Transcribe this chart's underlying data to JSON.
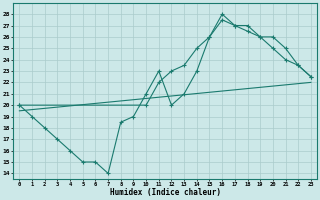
{
  "xlabel": "Humidex (Indice chaleur)",
  "bg_color": "#cce8e8",
  "grid_color": "#aacccc",
  "line_color": "#1a7a6e",
  "xlim": [
    -0.5,
    23.5
  ],
  "ylim": [
    13.5,
    29.0
  ],
  "xticks": [
    0,
    1,
    2,
    3,
    4,
    5,
    6,
    7,
    8,
    9,
    10,
    11,
    12,
    13,
    14,
    15,
    16,
    17,
    18,
    19,
    20,
    21,
    22,
    23
  ],
  "yticks": [
    14,
    15,
    16,
    17,
    18,
    19,
    20,
    21,
    22,
    23,
    24,
    25,
    26,
    27,
    28
  ],
  "line1_x": [
    0,
    1,
    2,
    3,
    4,
    5,
    6,
    7,
    8,
    9,
    10,
    11,
    12,
    13,
    14,
    15,
    16,
    17,
    18,
    19,
    20,
    21,
    22,
    23
  ],
  "line1_y": [
    20,
    19,
    18,
    17,
    16,
    15,
    15,
    14,
    18.5,
    19,
    21,
    23,
    20,
    21,
    23,
    26,
    28,
    27,
    27,
    26,
    25,
    24,
    23.5,
    22.5
  ],
  "line2_x": [
    0,
    10,
    11,
    12,
    13,
    14,
    15,
    16,
    17,
    18,
    19,
    20,
    21,
    22,
    23
  ],
  "line2_y": [
    20,
    20,
    22,
    23,
    23.5,
    25,
    26,
    27.5,
    27,
    26.5,
    26,
    26,
    25,
    23.5,
    22.5
  ],
  "line3_x": [
    0,
    23
  ],
  "line3_y": [
    19.5,
    22
  ]
}
